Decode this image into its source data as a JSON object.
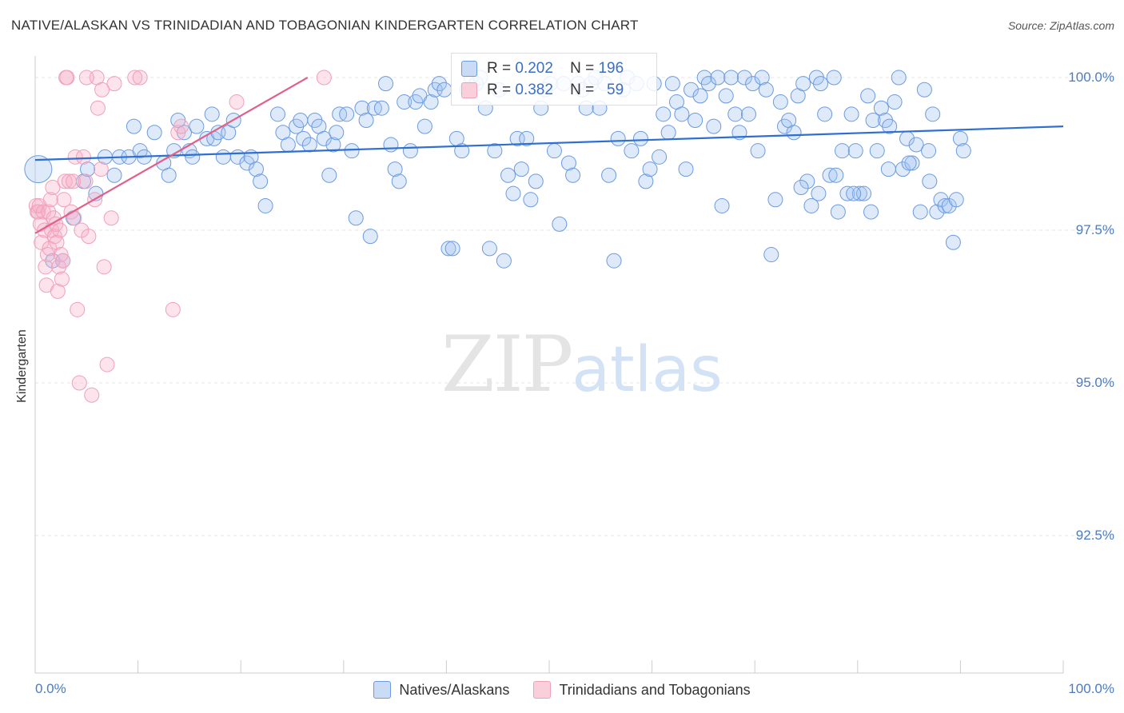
{
  "title": "NATIVE/ALASKAN VS TRINIDADIAN AND TOBAGONIAN KINDERGARTEN CORRELATION CHART",
  "source": "Source: ZipAtlas.com",
  "watermark": {
    "zip": "ZIP",
    "atlas": "atlas"
  },
  "colors": {
    "blue": "#6b9be0",
    "blue_line": "#2f6fd0",
    "pink": "#f0a0b8",
    "pink_line": "#e0608a",
    "tick_text": "#4a7cc4"
  },
  "chart_data": {
    "type": "scatter",
    "title": "NATIVE/ALASKAN VS TRINIDADIAN AND TOBAGONIAN KINDERGARTEN CORRELATION CHART",
    "ylabel": "Kindergarten",
    "xlabel": "",
    "xlim": [
      0,
      100
    ],
    "ylim": [
      90.0,
      100.4
    ],
    "x_tick_labels": [
      "0.0%",
      "100.0%"
    ],
    "y_ticks": [
      100.0,
      97.5,
      95.0,
      92.5
    ],
    "y_tick_labels": [
      "100.0%",
      "97.5%",
      "95.0%",
      "92.5%"
    ],
    "grid": true,
    "legend_position": "bottom",
    "stats": [
      {
        "r_label": "R =",
        "r": "0.202",
        "n_label": "N =",
        "n": "196"
      },
      {
        "r_label": "R =",
        "r": "0.382",
        "n_label": "N =",
        "n": "59"
      }
    ],
    "series": [
      {
        "name": "Natives/Alaskans",
        "color": "#6b9be0",
        "trend": [
          [
            0,
            98.65
          ],
          [
            100,
            99.2
          ]
        ],
        "points": [
          [
            0.3,
            98.5
          ],
          [
            1.7,
            97.0
          ],
          [
            2.7,
            97.0
          ],
          [
            3.7,
            97.7
          ],
          [
            4.7,
            98.3
          ],
          [
            5.1,
            98.5
          ],
          [
            5.9,
            98.1
          ],
          [
            6.8,
            98.7
          ],
          [
            7.7,
            98.4
          ],
          [
            8.2,
            98.7
          ],
          [
            9.1,
            98.7
          ],
          [
            9.6,
            99.2
          ],
          [
            10.2,
            98.8
          ],
          [
            10.6,
            98.7
          ],
          [
            11.6,
            99.1
          ],
          [
            12.5,
            98.6
          ],
          [
            13.0,
            98.4
          ],
          [
            13.5,
            98.8
          ],
          [
            13.9,
            99.3
          ],
          [
            14.5,
            99.1
          ],
          [
            15.0,
            98.8
          ],
          [
            15.3,
            98.7
          ],
          [
            15.7,
            99.2
          ],
          [
            16.7,
            99.0
          ],
          [
            17.2,
            99.4
          ],
          [
            17.4,
            99.0
          ],
          [
            17.8,
            99.1
          ],
          [
            18.3,
            98.7
          ],
          [
            18.8,
            99.1
          ],
          [
            19.3,
            99.3
          ],
          [
            19.7,
            98.7
          ],
          [
            20.6,
            98.6
          ],
          [
            21.0,
            98.7
          ],
          [
            21.5,
            98.5
          ],
          [
            21.9,
            98.3
          ],
          [
            22.4,
            97.9
          ],
          [
            23.6,
            99.4
          ],
          [
            24.1,
            99.1
          ],
          [
            24.6,
            98.9
          ],
          [
            25.4,
            99.2
          ],
          [
            25.8,
            99.3
          ],
          [
            26.1,
            99.0
          ],
          [
            26.7,
            98.9
          ],
          [
            27.2,
            99.3
          ],
          [
            27.6,
            99.2
          ],
          [
            28.1,
            99.0
          ],
          [
            28.6,
            98.4
          ],
          [
            29.0,
            98.9
          ],
          [
            29.3,
            99.1
          ],
          [
            29.6,
            99.4
          ],
          [
            30.3,
            99.4
          ],
          [
            30.8,
            98.8
          ],
          [
            31.2,
            97.7
          ],
          [
            31.8,
            99.5
          ],
          [
            32.2,
            99.3
          ],
          [
            32.6,
            97.4
          ],
          [
            33.0,
            99.5
          ],
          [
            33.7,
            99.5
          ],
          [
            34.1,
            99.9
          ],
          [
            34.6,
            98.9
          ],
          [
            35.0,
            98.5
          ],
          [
            35.4,
            98.3
          ],
          [
            35.9,
            99.6
          ],
          [
            36.5,
            98.8
          ],
          [
            37.0,
            99.6
          ],
          [
            37.4,
            99.7
          ],
          [
            37.9,
            99.2
          ],
          [
            38.5,
            99.6
          ],
          [
            38.9,
            99.8
          ],
          [
            39.3,
            99.9
          ],
          [
            39.8,
            99.8
          ],
          [
            40.2,
            97.2
          ],
          [
            40.6,
            97.2
          ],
          [
            41.0,
            99.0
          ],
          [
            41.5,
            98.8
          ],
          [
            42.0,
            99.8
          ],
          [
            42.4,
            100.0
          ],
          [
            42.9,
            99.9
          ],
          [
            43.3,
            100.0
          ],
          [
            43.8,
            99.5
          ],
          [
            44.2,
            97.2
          ],
          [
            44.7,
            98.8
          ],
          [
            45.1,
            99.8
          ],
          [
            45.6,
            97.0
          ],
          [
            46.0,
            98.4
          ],
          [
            46.5,
            98.1
          ],
          [
            46.9,
            99.0
          ],
          [
            47.3,
            98.5
          ],
          [
            47.8,
            99.0
          ],
          [
            48.2,
            98.0
          ],
          [
            48.7,
            98.3
          ],
          [
            49.2,
            99.5
          ],
          [
            49.6,
            99.8
          ],
          [
            50.1,
            99.9
          ],
          [
            50.5,
            98.8
          ],
          [
            51.0,
            97.6
          ],
          [
            51.4,
            99.9
          ],
          [
            51.9,
            98.6
          ],
          [
            52.3,
            98.4
          ],
          [
            52.8,
            99.9
          ],
          [
            53.2,
            99.8
          ],
          [
            53.6,
            99.5
          ],
          [
            54.1,
            99.9
          ],
          [
            54.5,
            100.0
          ],
          [
            54.9,
            99.5
          ],
          [
            55.4,
            99.9
          ],
          [
            55.8,
            98.4
          ],
          [
            56.3,
            97.0
          ],
          [
            56.7,
            99.0
          ],
          [
            57.2,
            99.8
          ],
          [
            57.6,
            100.0
          ],
          [
            58.0,
            98.8
          ],
          [
            58.5,
            99.9
          ],
          [
            58.9,
            99.0
          ],
          [
            59.4,
            98.3
          ],
          [
            59.8,
            98.5
          ],
          [
            60.2,
            99.9
          ],
          [
            60.7,
            98.7
          ],
          [
            61.1,
            99.4
          ],
          [
            61.6,
            99.1
          ],
          [
            62.0,
            99.9
          ],
          [
            62.4,
            99.6
          ],
          [
            62.9,
            99.4
          ],
          [
            63.3,
            98.5
          ],
          [
            63.8,
            99.8
          ],
          [
            64.2,
            99.3
          ],
          [
            64.7,
            99.7
          ],
          [
            65.1,
            100.0
          ],
          [
            65.5,
            99.9
          ],
          [
            66.0,
            99.2
          ],
          [
            66.4,
            100.0
          ],
          [
            66.8,
            97.9
          ],
          [
            67.2,
            99.7
          ],
          [
            67.7,
            100.0
          ],
          [
            68.1,
            99.4
          ],
          [
            68.5,
            99.1
          ],
          [
            69.0,
            100.0
          ],
          [
            69.4,
            99.4
          ],
          [
            69.8,
            99.9
          ],
          [
            70.3,
            98.8
          ],
          [
            70.7,
            100.0
          ],
          [
            71.1,
            99.8
          ],
          [
            71.6,
            97.1
          ],
          [
            72.0,
            98.0
          ],
          [
            72.5,
            99.6
          ],
          [
            72.9,
            99.2
          ],
          [
            73.3,
            99.3
          ],
          [
            73.8,
            99.1
          ],
          [
            74.2,
            99.7
          ],
          [
            74.7,
            99.9
          ],
          [
            75.1,
            98.3
          ],
          [
            75.5,
            97.9
          ],
          [
            76.0,
            100.0
          ],
          [
            76.4,
            99.9
          ],
          [
            76.8,
            99.4
          ],
          [
            77.3,
            98.4
          ],
          [
            77.7,
            100.0
          ],
          [
            78.1,
            97.8
          ],
          [
            78.5,
            98.8
          ],
          [
            79.0,
            98.1
          ],
          [
            79.4,
            99.4
          ],
          [
            79.8,
            98.8
          ],
          [
            80.2,
            98.1
          ],
          [
            80.6,
            98.1
          ],
          [
            81.0,
            99.7
          ],
          [
            81.5,
            99.3
          ],
          [
            81.9,
            98.8
          ],
          [
            82.3,
            99.5
          ],
          [
            82.7,
            99.3
          ],
          [
            83.1,
            99.2
          ],
          [
            83.6,
            99.6
          ],
          [
            84.0,
            100.0
          ],
          [
            84.4,
            98.5
          ],
          [
            84.8,
            99.0
          ],
          [
            85.3,
            98.6
          ],
          [
            85.7,
            98.9
          ],
          [
            86.1,
            97.8
          ],
          [
            86.5,
            99.8
          ],
          [
            86.9,
            98.8
          ],
          [
            87.3,
            99.4
          ],
          [
            87.7,
            97.8
          ],
          [
            88.1,
            98.0
          ],
          [
            88.5,
            97.9
          ],
          [
            88.9,
            97.9
          ],
          [
            89.3,
            97.3
          ],
          [
            90.0,
            99.0
          ],
          [
            90.3,
            98.8
          ],
          [
            89.6,
            98.0
          ],
          [
            87.0,
            98.3
          ],
          [
            85.0,
            98.6
          ],
          [
            83.0,
            98.5
          ],
          [
            81.3,
            97.8
          ],
          [
            79.6,
            98.1
          ],
          [
            77.9,
            98.4
          ],
          [
            76.2,
            98.1
          ],
          [
            74.5,
            98.2
          ]
        ]
      },
      {
        "name": "Trinidadians and Tobagonians",
        "color": "#f0a0b8",
        "trend": [
          [
            0,
            97.45
          ],
          [
            26.5,
            100.0
          ]
        ],
        "points": [
          [
            0.1,
            97.9
          ],
          [
            0.2,
            97.8
          ],
          [
            0.3,
            97.8
          ],
          [
            0.4,
            97.9
          ],
          [
            0.5,
            97.6
          ],
          [
            0.6,
            97.3
          ],
          [
            0.8,
            97.8
          ],
          [
            0.9,
            97.5
          ],
          [
            1.0,
            96.9
          ],
          [
            1.1,
            96.6
          ],
          [
            1.2,
            97.1
          ],
          [
            1.3,
            97.8
          ],
          [
            1.4,
            97.2
          ],
          [
            1.5,
            98.0
          ],
          [
            1.6,
            97.5
          ],
          [
            1.7,
            98.2
          ],
          [
            1.8,
            97.7
          ],
          [
            1.9,
            97.4
          ],
          [
            2.0,
            97.6
          ],
          [
            2.1,
            97.3
          ],
          [
            2.2,
            96.5
          ],
          [
            2.3,
            96.9
          ],
          [
            2.4,
            97.5
          ],
          [
            2.5,
            97.1
          ],
          [
            2.6,
            96.7
          ],
          [
            2.7,
            97.0
          ],
          [
            2.8,
            98.0
          ],
          [
            2.9,
            98.3
          ],
          [
            3.0,
            100.0
          ],
          [
            3.1,
            100.0
          ],
          [
            3.3,
            98.3
          ],
          [
            3.5,
            97.8
          ],
          [
            3.7,
            98.3
          ],
          [
            3.9,
            98.7
          ],
          [
            4.1,
            96.2
          ],
          [
            4.3,
            95.0
          ],
          [
            4.5,
            97.5
          ],
          [
            4.7,
            98.7
          ],
          [
            4.9,
            98.3
          ],
          [
            5.2,
            97.4
          ],
          [
            5.5,
            94.8
          ],
          [
            5.8,
            98.0
          ],
          [
            6.0,
            100.0
          ],
          [
            6.1,
            99.5
          ],
          [
            6.4,
            98.5
          ],
          [
            6.7,
            96.9
          ],
          [
            7.0,
            95.3
          ],
          [
            7.4,
            97.7
          ],
          [
            7.7,
            99.9
          ],
          [
            9.7,
            100.0
          ],
          [
            10.2,
            100.0
          ],
          [
            13.4,
            96.2
          ],
          [
            13.9,
            99.1
          ],
          [
            14.2,
            99.2
          ],
          [
            19.6,
            99.6
          ],
          [
            28.1,
            100.0
          ],
          [
            3.8,
            97.7
          ],
          [
            5.0,
            100.0
          ],
          [
            6.5,
            99.8
          ]
        ]
      }
    ]
  }
}
